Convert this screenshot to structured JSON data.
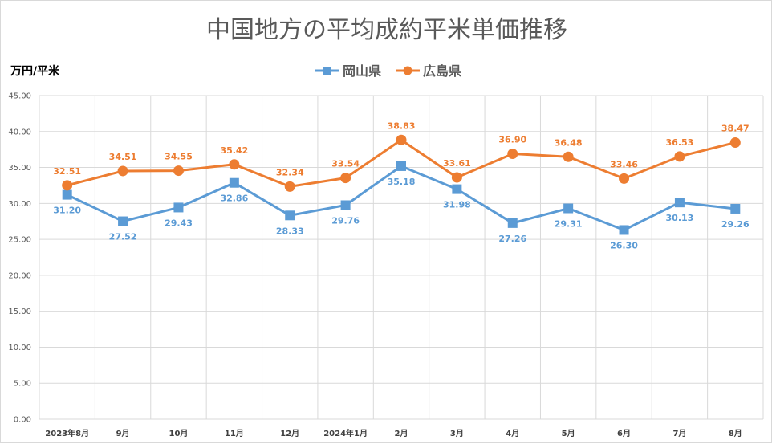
{
  "chart_data": {
    "type": "line",
    "title": "中国地方の平均成約平米単価推移",
    "ylabel": "万円/平米",
    "ylim": [
      0,
      45
    ],
    "yticks": [
      "0.00",
      "5.00",
      "10.00",
      "15.00",
      "20.00",
      "25.00",
      "30.00",
      "35.00",
      "40.00",
      "45.00"
    ],
    "categories": [
      "2023年8月",
      "9月",
      "10月",
      "11月",
      "12月",
      "2024年1月",
      "2月",
      "3月",
      "4月",
      "5月",
      "6月",
      "7月",
      "8月"
    ],
    "grid": true,
    "legend_position": "top",
    "series": [
      {
        "name": "岡山県",
        "color": "#5b9bd5",
        "marker": "square",
        "label_position": "below",
        "values": [
          31.2,
          27.52,
          29.43,
          32.86,
          28.33,
          29.76,
          35.18,
          31.98,
          27.26,
          29.31,
          26.3,
          30.13,
          29.26
        ],
        "labels": [
          "31.20",
          "27.52",
          "29.43",
          "32.86",
          "28.33",
          "29.76",
          "35.18",
          "31.98",
          "27.26",
          "29.31",
          "26.30",
          "30.13",
          "29.26"
        ]
      },
      {
        "name": "広島県",
        "color": "#ed7d31",
        "marker": "circle",
        "label_position": "above",
        "values": [
          32.51,
          34.51,
          34.55,
          35.42,
          32.34,
          33.54,
          38.83,
          33.61,
          36.9,
          36.48,
          33.46,
          36.53,
          38.47
        ],
        "labels": [
          "32.51",
          "34.51",
          "34.55",
          "35.42",
          "32.34",
          "33.54",
          "38.83",
          "33.61",
          "36.90",
          "36.48",
          "33.46",
          "36.53",
          "38.47"
        ]
      }
    ]
  }
}
